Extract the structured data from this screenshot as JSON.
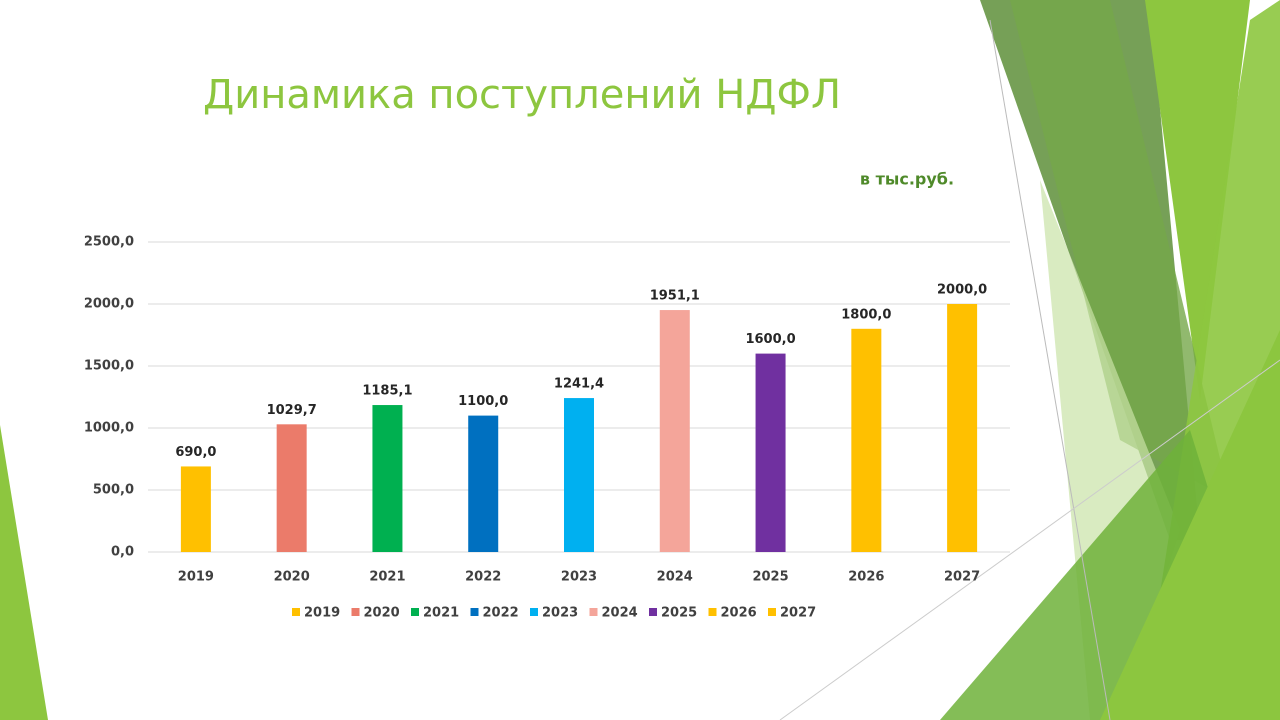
{
  "chart_data": {
    "type": "bar",
    "title": "Динамика поступлений НДФЛ",
    "subtitle": "в тыс.руб.",
    "categories": [
      "2019",
      "2020",
      "2021",
      "2022",
      "2023",
      "2024",
      "2025",
      "2026",
      "2027"
    ],
    "values": [
      690,
      1029.7,
      1185.1,
      1100,
      1241.4,
      1951.1,
      1600,
      1800,
      2000
    ],
    "value_labels": [
      "690,0",
      "1029,7",
      "1185,1",
      "1100,0",
      "1241,4",
      "1951,1",
      "1600,0",
      "1800,0",
      "2000,0"
    ],
    "colors": [
      "#FFC000",
      "#EB7B6A",
      "#00B050",
      "#0070C0",
      "#00B0F0",
      "#F4A59A",
      "#7030A0",
      "#FFC000",
      "#FFC000"
    ],
    "ylim": [
      0,
      2500
    ],
    "yticks": [
      {
        "value": 0,
        "label": "0,0"
      },
      {
        "value": 500,
        "label": "500,0"
      },
      {
        "value": 1000,
        "label": "1000,0"
      },
      {
        "value": 1500,
        "label": "1500,0"
      },
      {
        "value": 2000,
        "label": "2000,0"
      },
      {
        "value": 2500,
        "label": "2500,0"
      }
    ],
    "grid": true,
    "legend": "bottom"
  }
}
